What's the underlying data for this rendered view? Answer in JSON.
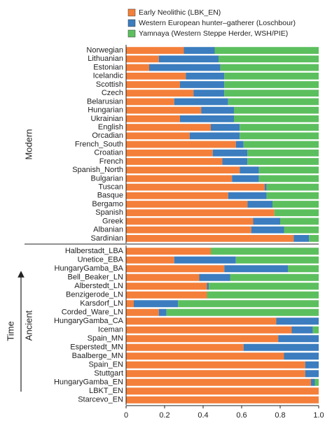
{
  "chart_data": [
    {
      "type": "bar",
      "orientation": "horizontal",
      "stacked": true,
      "group_label": "Modern",
      "legend": "top",
      "categories": [
        "Norwegian",
        "Lithuanian",
        "Estonian",
        "Icelandic",
        "Scottish",
        "Czech",
        "Belarusian",
        "Hungarian",
        "Ukrainian",
        "English",
        "Orcadian",
        "French_South",
        "Croatian",
        "French",
        "Spanish_North",
        "Bulgarian",
        "Tuscan",
        "Basque",
        "Bergamo",
        "Spanish",
        "Greek",
        "Albanian",
        "Sardinian"
      ],
      "series": [
        {
          "name": "Early Neolithic (LBK_EN)",
          "color": "#f47f3a",
          "values": [
            0.3,
            0.17,
            0.12,
            0.31,
            0.28,
            0.35,
            0.25,
            0.39,
            0.28,
            0.44,
            0.33,
            0.57,
            0.45,
            0.5,
            0.59,
            0.55,
            0.72,
            0.53,
            0.63,
            0.77,
            0.66,
            0.65,
            0.87
          ]
        },
        {
          "name": "Western European hunter–gatherer (Loschbour)",
          "color": "#3b7dbf",
          "values": [
            0.16,
            0.31,
            0.37,
            0.2,
            0.23,
            0.16,
            0.28,
            0.17,
            0.28,
            0.15,
            0.26,
            0.04,
            0.18,
            0.13,
            0.1,
            0.14,
            0.01,
            0.2,
            0.13,
            0.0,
            0.14,
            0.17,
            0.08
          ]
        },
        {
          "name": "Yamnaya (Western Steppe Herder, WSH/PIE)",
          "color": "#5cbf5e",
          "values": [
            0.54,
            0.52,
            0.51,
            0.49,
            0.49,
            0.49,
            0.47,
            0.44,
            0.44,
            0.41,
            0.41,
            0.39,
            0.37,
            0.37,
            0.31,
            0.31,
            0.27,
            0.27,
            0.24,
            0.23,
            0.2,
            0.18,
            0.05
          ]
        }
      ],
      "xlim": [
        0,
        1
      ]
    },
    {
      "type": "bar",
      "orientation": "horizontal",
      "stacked": true,
      "group_label": "Ancient",
      "annotation": "Time",
      "categories": [
        "Halberstadt_LBA",
        "Unetice_EBA",
        "HungaryGamba_BA",
        "Bell_Beaker_LN",
        "Alberstedt_LN",
        "Benzigerode_LN",
        "Karsdorf_LN",
        "Corded_Ware_LN",
        "HungaryGamba_CA",
        "Iceman",
        "Spain_MN",
        "Esperstedt_MN",
        "Baalberge_MN",
        "Spain_EN",
        "Stuttgart",
        "HungaryGamba_EN",
        "LBKT_EN",
        "Starcevo_EN"
      ],
      "series": [
        {
          "color": "#f47f3a",
          "values": [
            0.44,
            0.25,
            0.51,
            0.38,
            0.42,
            0.42,
            0.04,
            0.17,
            0.78,
            0.86,
            0.79,
            0.61,
            0.82,
            0.93,
            0.93,
            0.96,
            1.0,
            1.0
          ]
        },
        {
          "color": "#3b7dbf",
          "values": [
            0.0,
            0.32,
            0.33,
            0.16,
            0.01,
            0.0,
            0.23,
            0.04,
            0.22,
            0.11,
            0.21,
            0.39,
            0.18,
            0.07,
            0.07,
            0.02,
            0.0,
            0.0
          ]
        },
        {
          "color": "#5cbf5e",
          "values": [
            0.56,
            0.43,
            0.16,
            0.46,
            0.57,
            0.58,
            0.73,
            0.79,
            0.0,
            0.03,
            0.0,
            0.0,
            0.0,
            0.0,
            0.0,
            0.02,
            0.0,
            0.0
          ]
        }
      ],
      "xlim": [
        0,
        1
      ],
      "xticks": [
        0,
        0.2,
        0.4,
        0.6,
        0.8,
        {
          "value": 1,
          "label": "1.0"
        }
      ]
    }
  ]
}
